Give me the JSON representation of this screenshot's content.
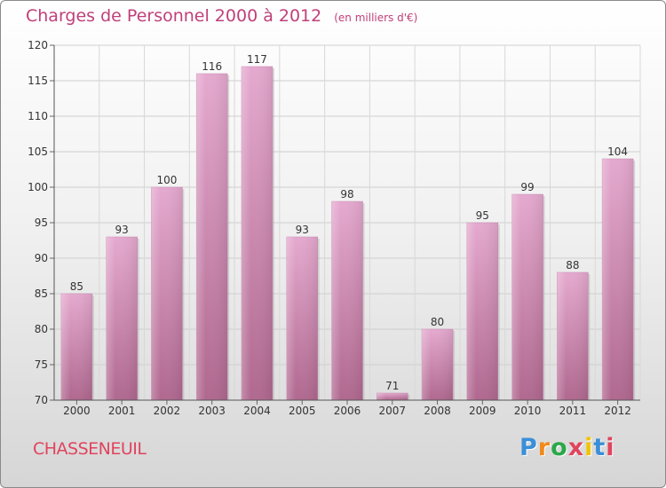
{
  "header": {
    "title": "Charges de Personnel 2000 à 2012",
    "subtitle": "(en milliers d'€)"
  },
  "footer": {
    "town": "CHASSENEUIL",
    "logo_text": "Proxiti",
    "logo_colors": [
      "#3a8fd8",
      "#f08a1c",
      "#2aa84a",
      "#e0445e",
      "#f2c400",
      "#3a8fd8",
      "#e0445e"
    ]
  },
  "chart_data": {
    "type": "bar",
    "title": "Charges de Personnel 2000 à 2012",
    "subtitle": "(en milliers d'€)",
    "xlabel": "",
    "ylabel": "",
    "categories": [
      "2000",
      "2001",
      "2002",
      "2003",
      "2004",
      "2005",
      "2006",
      "2007",
      "2008",
      "2009",
      "2010",
      "2011",
      "2012"
    ],
    "values": [
      85,
      93,
      100,
      116,
      117,
      93,
      98,
      71,
      80,
      95,
      99,
      88,
      104
    ],
    "ylim": [
      70,
      120
    ],
    "yticks": [
      70,
      75,
      80,
      85,
      90,
      95,
      100,
      105,
      110,
      115,
      120
    ],
    "grid": true,
    "legend": "none",
    "bar_color": "#d98cbc"
  }
}
